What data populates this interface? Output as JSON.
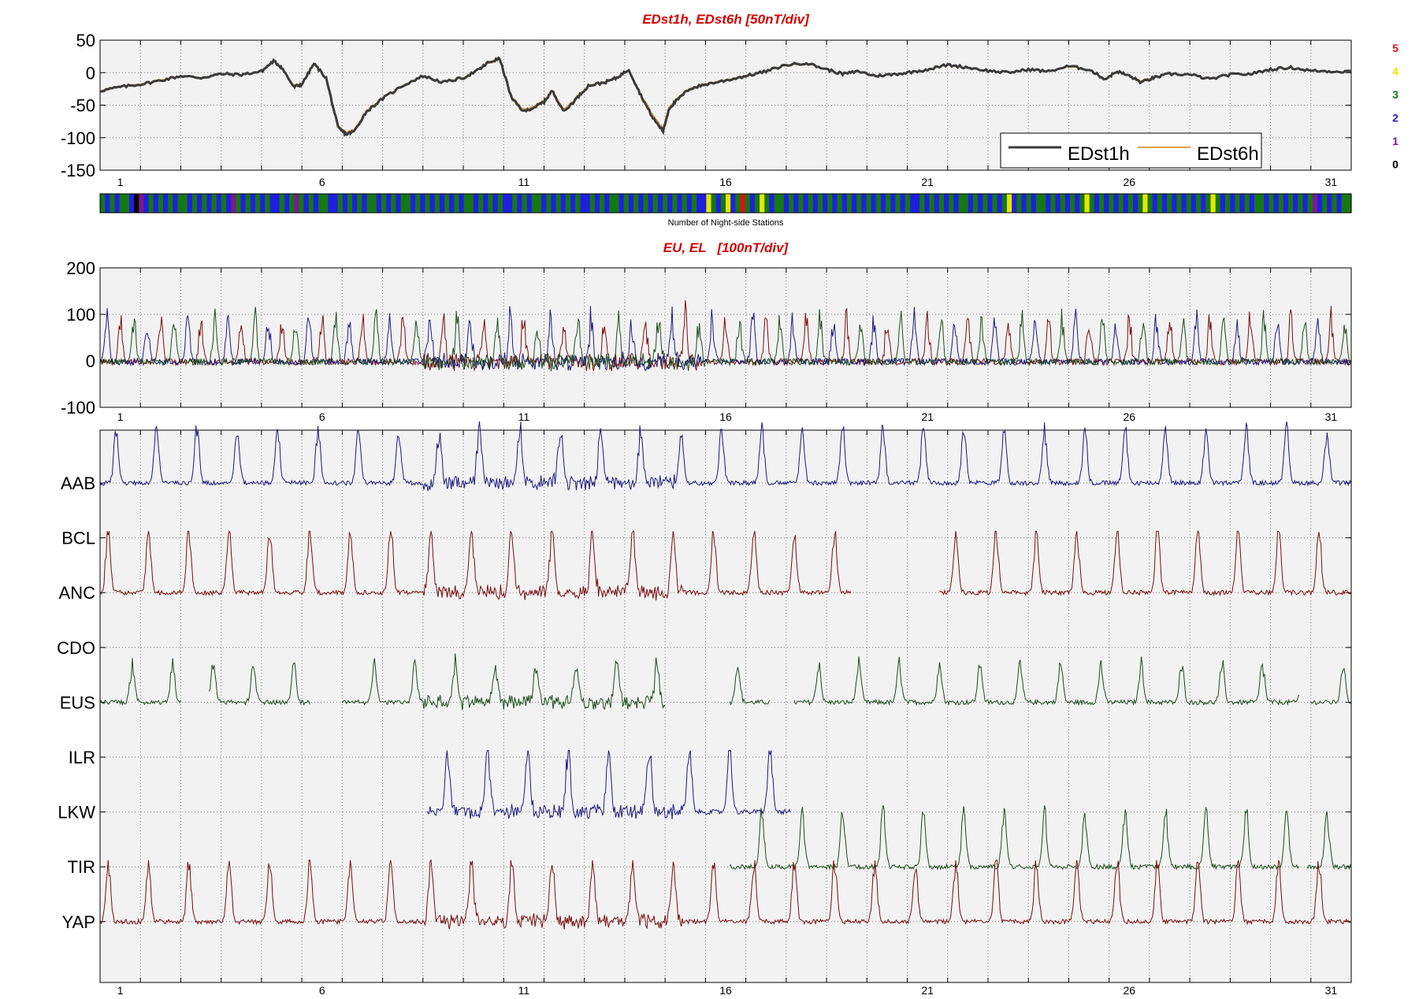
{
  "colors": {
    "title_red": "#d40000",
    "panel_bg": "#f2f2f2",
    "grid": "#7f7f7f",
    "edst1h": "#3a3a3a",
    "edst6h": "#d8a24a",
    "station_blue": "#1a1a80",
    "station_red": "#7a0d0d",
    "station_green": "#1b4d1b",
    "count_0": "#000000",
    "count_1": "#7a1a8c",
    "count_2": "#1f1fe0",
    "count_3": "#147814",
    "count_4": "#e6e600",
    "count_5": "#e01010"
  },
  "chart_data": [
    {
      "type": "line",
      "title": "EDst1h, EDst6h [50nT/div]",
      "xlabel": "",
      "ylabel": "",
      "xlim": [
        0,
        31
      ],
      "ylim": [
        -150,
        50
      ],
      "yticks": [
        50,
        0,
        -50,
        -100,
        -150
      ],
      "xtick_labels": [
        "1",
        "6",
        "11",
        "16",
        "21",
        "26",
        "31"
      ],
      "grid": true,
      "legend_position": "lower-right",
      "series": [
        {
          "name": "EDst1h",
          "color": "edst1h",
          "x": [
            0,
            0.5,
            1.0,
            1.5,
            2.0,
            2.5,
            3.0,
            3.5,
            4.0,
            4.3,
            4.5,
            4.8,
            5.0,
            5.3,
            5.6,
            5.9,
            6.1,
            6.3,
            6.6,
            7.0,
            7.5,
            8.0,
            8.5,
            9.0,
            9.4,
            9.6,
            9.9,
            10.2,
            10.5,
            10.8,
            11.0,
            11.2,
            11.5,
            11.8,
            12.1,
            12.5,
            12.8,
            13.1,
            13.4,
            13.7,
            13.95,
            14.1,
            14.3,
            14.6,
            15.0,
            15.5,
            16.0,
            16.5,
            17.0,
            17.5,
            18.0,
            18.4,
            18.8,
            19.2,
            19.6,
            20.0,
            20.5,
            21.0,
            21.5,
            22.0,
            22.5,
            23.0,
            23.5,
            24.0,
            24.5,
            24.9,
            25.2,
            25.5,
            25.8,
            26.1,
            26.5,
            27.0,
            27.5,
            28.0,
            28.5,
            29.0,
            29.5,
            30.0,
            30.5,
            31.0
          ],
          "y": [
            -28,
            -22,
            -18,
            -12,
            -5,
            -8,
            -2,
            -3,
            2,
            18,
            8,
            -22,
            -18,
            14,
            -8,
            -85,
            -95,
            -90,
            -60,
            -40,
            -20,
            -5,
            -15,
            -8,
            5,
            15,
            22,
            -40,
            -60,
            -52,
            -45,
            -28,
            -60,
            -40,
            -20,
            -15,
            -8,
            5,
            -35,
            -70,
            -90,
            -55,
            -42,
            -25,
            -18,
            -12,
            -5,
            2,
            12,
            15,
            5,
            -2,
            2,
            -5,
            -3,
            0,
            5,
            12,
            8,
            3,
            0,
            5,
            2,
            10,
            5,
            -10,
            2,
            -5,
            -15,
            -8,
            -2,
            -3,
            -10,
            -3,
            -2,
            5,
            8,
            3,
            2,
            2
          ]
        },
        {
          "name": "EDst6h",
          "color": "edst6h",
          "x": [
            0,
            0.5,
            1.0,
            1.5,
            2.0,
            2.5,
            3.0,
            3.5,
            4.0,
            4.3,
            4.5,
            4.8,
            5.0,
            5.3,
            5.6,
            5.9,
            6.1,
            6.3,
            6.6,
            7.0,
            7.5,
            8.0,
            8.5,
            9.0,
            9.4,
            9.6,
            9.9,
            10.2,
            10.5,
            10.8,
            11.0,
            11.2,
            11.5,
            11.8,
            12.1,
            12.5,
            12.8,
            13.1,
            13.4,
            13.7,
            13.95,
            14.1,
            14.3,
            14.6,
            15.0,
            15.5,
            16.0,
            16.5,
            17.0,
            17.5,
            18.0,
            18.4,
            18.8,
            19.2,
            19.6,
            20.0,
            20.5,
            21.0,
            21.5,
            22.0,
            22.5,
            23.0,
            23.5,
            24.0,
            24.5,
            24.9,
            25.2,
            25.5,
            25.8,
            26.1,
            26.5,
            27.0,
            27.5,
            28.0,
            28.5,
            29.0,
            29.5,
            30.0,
            30.5,
            31.0
          ],
          "y": [
            -27,
            -21,
            -17,
            -11,
            -5,
            -7,
            -2,
            -3,
            2,
            17,
            8,
            -20,
            -17,
            13,
            -9,
            -83,
            -92,
            -88,
            -58,
            -39,
            -19,
            -5,
            -14,
            -7,
            5,
            14,
            20,
            -38,
            -57,
            -50,
            -43,
            -27,
            -57,
            -38,
            -19,
            -14,
            -7,
            5,
            -33,
            -66,
            -86,
            -52,
            -40,
            -24,
            -17,
            -11,
            -4,
            2,
            11,
            14,
            5,
            -2,
            2,
            -4,
            -3,
            0,
            5,
            11,
            7,
            3,
            0,
            5,
            2,
            9,
            5,
            -9,
            2,
            -5,
            -13,
            -7,
            -2,
            -3,
            -9,
            -3,
            -2,
            5,
            7,
            3,
            2,
            2
          ]
        }
      ]
    },
    {
      "type": "heatmap",
      "xlabel": "Number of Night-side Stations",
      "xlim": [
        0,
        31
      ],
      "scale_labels": [
        "5",
        "4",
        "3",
        "2",
        "1",
        "0"
      ],
      "value_colors": [
        "count_0",
        "count_1",
        "count_2",
        "count_3",
        "count_4",
        "count_5"
      ],
      "bins_per_day": 8,
      "values": [
        3,
        2,
        3,
        2,
        3,
        3,
        2,
        0,
        1,
        2,
        3,
        2,
        3,
        2,
        3,
        2,
        3,
        3,
        2,
        3,
        2,
        3,
        2,
        3,
        2,
        3,
        2,
        1,
        3,
        2,
        3,
        2,
        3,
        2,
        3,
        2,
        2,
        3,
        2,
        3,
        1,
        3,
        2,
        3,
        2,
        3,
        3,
        2,
        2,
        3,
        2,
        3,
        2,
        3,
        2,
        3,
        3,
        2,
        3,
        2,
        3,
        2,
        3,
        3,
        2,
        3,
        2,
        3,
        2,
        3,
        2,
        3,
        2,
        3,
        2,
        3,
        3,
        2,
        3,
        2,
        3,
        2,
        3,
        2,
        2,
        3,
        2,
        3,
        2,
        3,
        3,
        2,
        3,
        2,
        3,
        2,
        3,
        2,
        3,
        2,
        2,
        3,
        2,
        3,
        2,
        3,
        3,
        2,
        3,
        2,
        3,
        2,
        3,
        2,
        3,
        2,
        3,
        2,
        3,
        2,
        3,
        2,
        3,
        2,
        2,
        4,
        3,
        2,
        3,
        4,
        2,
        3,
        5,
        3,
        2,
        3,
        4,
        3,
        2,
        3,
        3,
        2,
        3,
        2,
        3,
        2,
        3,
        2,
        3,
        2,
        3,
        2,
        3,
        2,
        3,
        2,
        3,
        2,
        3,
        2,
        3,
        2,
        3,
        2,
        3,
        2,
        3,
        2,
        2,
        3,
        2,
        3,
        2,
        3,
        2,
        3,
        2,
        3,
        3,
        2,
        3,
        2,
        3,
        2,
        3,
        2,
        3,
        4,
        2,
        3,
        2,
        3,
        2,
        3,
        3,
        2,
        3,
        2,
        3,
        2,
        3,
        2,
        3,
        4,
        3,
        2,
        3,
        2,
        3,
        2,
        3,
        2,
        3,
        2,
        3,
        4,
        3,
        2,
        3,
        2,
        3,
        2,
        3,
        2,
        3,
        2,
        3,
        2,
        3,
        4,
        3,
        2,
        3,
        2,
        3,
        2,
        3,
        2,
        3,
        3,
        2,
        3,
        2,
        3,
        2,
        3,
        2,
        3,
        2,
        3,
        1,
        2,
        3,
        2,
        3,
        2,
        3,
        3
      ]
    },
    {
      "type": "line",
      "title": "EU, EL   [100nT/div]",
      "xlim": [
        0,
        31
      ],
      "ylim": [
        -100,
        200
      ],
      "yticks": [
        200,
        100,
        0,
        -100
      ],
      "xtick_labels": [
        "1",
        "6",
        "11",
        "16",
        "21",
        "26",
        "31"
      ],
      "grid": true,
      "series_colors": [
        "station_red",
        "station_blue",
        "station_green"
      ]
    },
    {
      "type": "line",
      "xlim": [
        0,
        31
      ],
      "xtick_labels": [
        "1",
        "6",
        "11",
        "16",
        "21",
        "26",
        "31"
      ],
      "grid": true,
      "ytick_labels": [
        "AAB",
        "BCL",
        "ANC",
        "CDO",
        "EUS",
        "ILR",
        "LKW",
        "TIR",
        "YAP"
      ],
      "stations": [
        {
          "name": "AAB",
          "color": "station_blue",
          "offset": 0.1,
          "amplitude": 1.0,
          "segments": [
            [
              0,
              31
            ]
          ]
        },
        {
          "name": "ANC",
          "color": "station_red",
          "offset": 0.3,
          "amplitude": 1.2,
          "segments": [
            [
              0,
              18.6
            ],
            [
              20.8,
              31
            ]
          ]
        },
        {
          "name": "EUS",
          "color": "station_green",
          "offset": 0.7,
          "amplitude": 0.7,
          "segments": [
            [
              0,
              2
            ],
            [
              2.7,
              5.2
            ],
            [
              6,
              14
            ],
            [
              15.6,
              16.6
            ],
            [
              17.2,
              29.7
            ],
            [
              30,
              31
            ]
          ]
        },
        {
          "name": "LKW",
          "color": "station_blue",
          "offset": 0.9,
          "amplitude": 1.2,
          "segments": [
            [
              8.1,
              17.1
            ]
          ]
        },
        {
          "name": "TIR",
          "color": "station_green",
          "offset": 1.1,
          "amplitude": 1.0,
          "segments": [
            [
              15.6,
              29.7
            ],
            [
              29.9,
              31
            ]
          ]
        },
        {
          "name": "YAP",
          "color": "station_red",
          "offset": 1.3,
          "amplitude": 1.1,
          "segments": [
            [
              0,
              31
            ]
          ]
        }
      ]
    }
  ],
  "legend": {
    "entries": [
      {
        "label": "EDst1h",
        "color": "edst1h"
      },
      {
        "label": "EDst6h",
        "color": "edst6h"
      }
    ]
  }
}
